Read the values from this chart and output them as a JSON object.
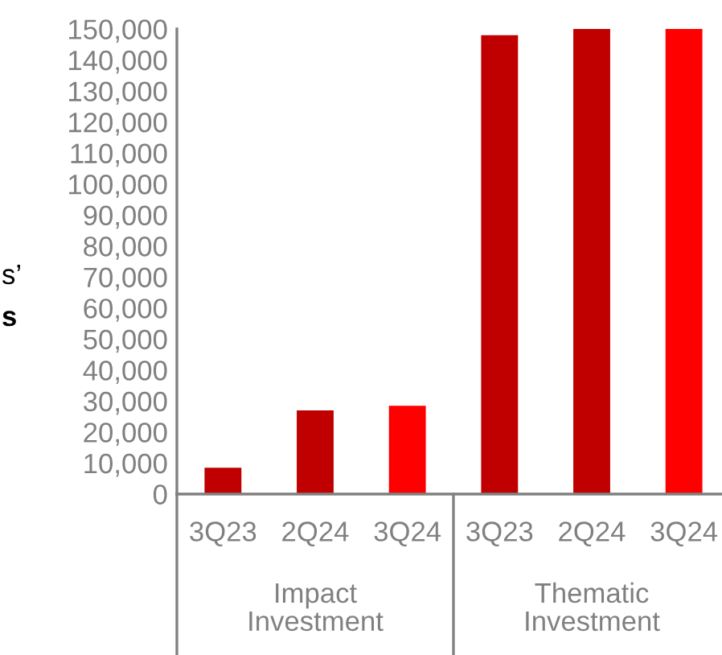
{
  "chart_data": {
    "type": "bar",
    "categories": [
      "3Q23",
      "2Q24",
      "3Q24",
      "3Q23",
      "2Q24",
      "3Q24"
    ],
    "values": [
      8500,
      27000,
      28500,
      148000,
      150000,
      150000
    ],
    "colors": [
      "#c00000",
      "#c00000",
      "#ff0000",
      "#c00000",
      "#c00000",
      "#ff0000"
    ],
    "ylim": [
      0,
      150000
    ],
    "yticks": [
      {
        "value": 0,
        "label": "0"
      },
      {
        "value": 10000,
        "label": "10,000"
      },
      {
        "value": 20000,
        "label": "20,000"
      },
      {
        "value": 30000,
        "label": "30,000"
      },
      {
        "value": 40000,
        "label": "40,000"
      },
      {
        "value": 50000,
        "label": "50,000"
      },
      {
        "value": 60000,
        "label": "60,000"
      },
      {
        "value": 70000,
        "label": "70,000"
      },
      {
        "value": 80000,
        "label": "80,000"
      },
      {
        "value": 90000,
        "label": "90,000"
      },
      {
        "value": 100000,
        "label": "100,000"
      },
      {
        "value": 110000,
        "label": "110,000"
      },
      {
        "value": 120000,
        "label": "120,000"
      },
      {
        "value": 130000,
        "label": "130,000"
      },
      {
        "value": 140000,
        "label": "140,000"
      },
      {
        "value": 150000,
        "label": "150,000"
      }
    ],
    "annotations": [
      "Impact\nInvestment",
      "Thematic\nInvestment",
      "s’",
      "s"
    ],
    "grid": false,
    "legend": false
  }
}
